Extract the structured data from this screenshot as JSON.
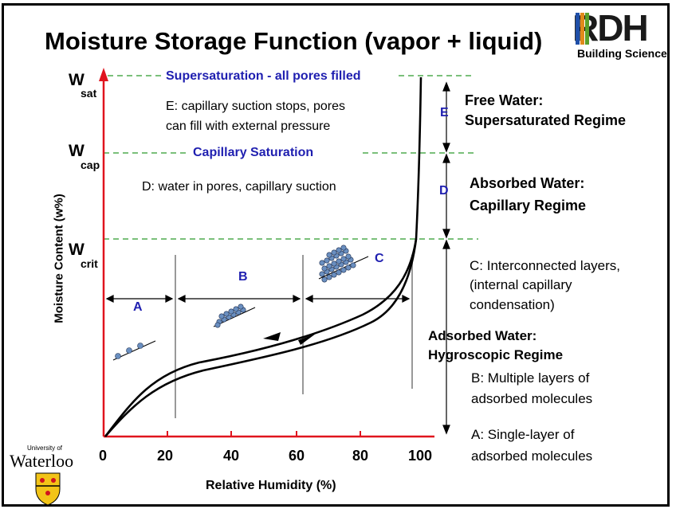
{
  "title": "Moisture Storage Function (vapor + liquid)",
  "logo": {
    "word": "RDH",
    "subtitle": "Building Science"
  },
  "axes": {
    "ylabel": "Moisture Content  (w%)",
    "xlabel": "Relative Humidity (%)",
    "xticks": [
      "0",
      "20",
      "40",
      "60",
      "80",
      "100"
    ]
  },
  "levels": {
    "wsat": {
      "main": "W",
      "sub": "sat"
    },
    "wcap": {
      "main": "W",
      "sub": "cap"
    },
    "wcrit": {
      "main": "W",
      "sub": "crit"
    }
  },
  "lines": {
    "supersaturation": "Supersaturation - all pores filled",
    "capillary": "Capillary Saturation"
  },
  "notes": {
    "e_line1": "E:  capillary suction stops, pores",
    "e_line2": "can fill with external pressure",
    "d": "D:  water in pores, capillary suction"
  },
  "zone_letters": {
    "a": "A",
    "b": "B",
    "c": "C",
    "d": "D",
    "e": "E"
  },
  "regimes": {
    "free_line1": "Free Water:",
    "free_line2": "Supersaturated Regime",
    "absorbed_line1": "Absorbed Water:",
    "absorbed_line2": "Capillary Regime",
    "c_line1": "C:  Interconnected layers,",
    "c_line2": "(internal capillary",
    "c_line3": "condensation)",
    "adsorbed_line1": "Adsorbed Water:",
    "adsorbed_line2": "Hygroscopic Regime",
    "b_line1": "B:  Multiple layers of",
    "b_line2": "adsorbed molecules",
    "a_line1": "A:  Single-layer of",
    "a_line2": "adsorbed molecules"
  },
  "university": {
    "small": "University of",
    "name": "Waterloo"
  },
  "colors": {
    "axis": "#e0141e",
    "guide": "#2a9a2a",
    "blue": "#1f1fb0",
    "dots": "#6a8fc0"
  }
}
